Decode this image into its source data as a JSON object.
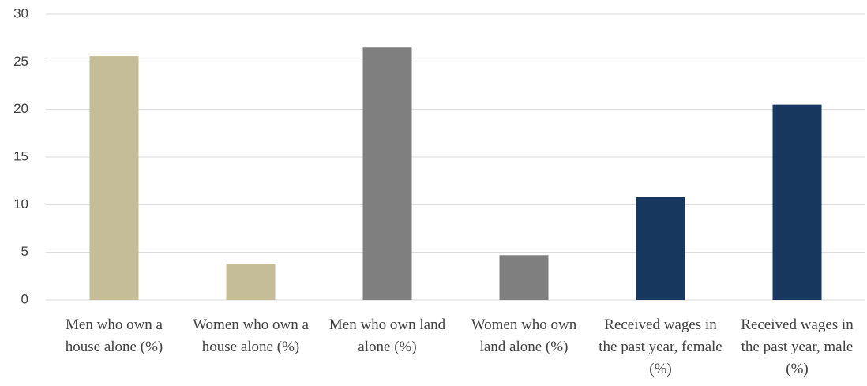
{
  "chart_data": {
    "type": "bar",
    "categories": [
      "Men who own a house alone (%)",
      "Women who own a house alone (%)",
      "Men who own land alone (%)",
      "Women who own land alone (%)",
      "Received wages in the past year, female (%)",
      "Received wages in the past year, male (%)"
    ],
    "values": [
      25.6,
      3.8,
      26.5,
      4.7,
      10.8,
      20.5
    ],
    "colors": [
      "#c4bd97",
      "#c4bd97",
      "#7f7f7f",
      "#7f7f7f",
      "#17375e",
      "#17375e"
    ],
    "ylim": [
      0,
      30
    ],
    "yticks": [
      0,
      5,
      10,
      15,
      20,
      25,
      30
    ],
    "grid": true
  }
}
